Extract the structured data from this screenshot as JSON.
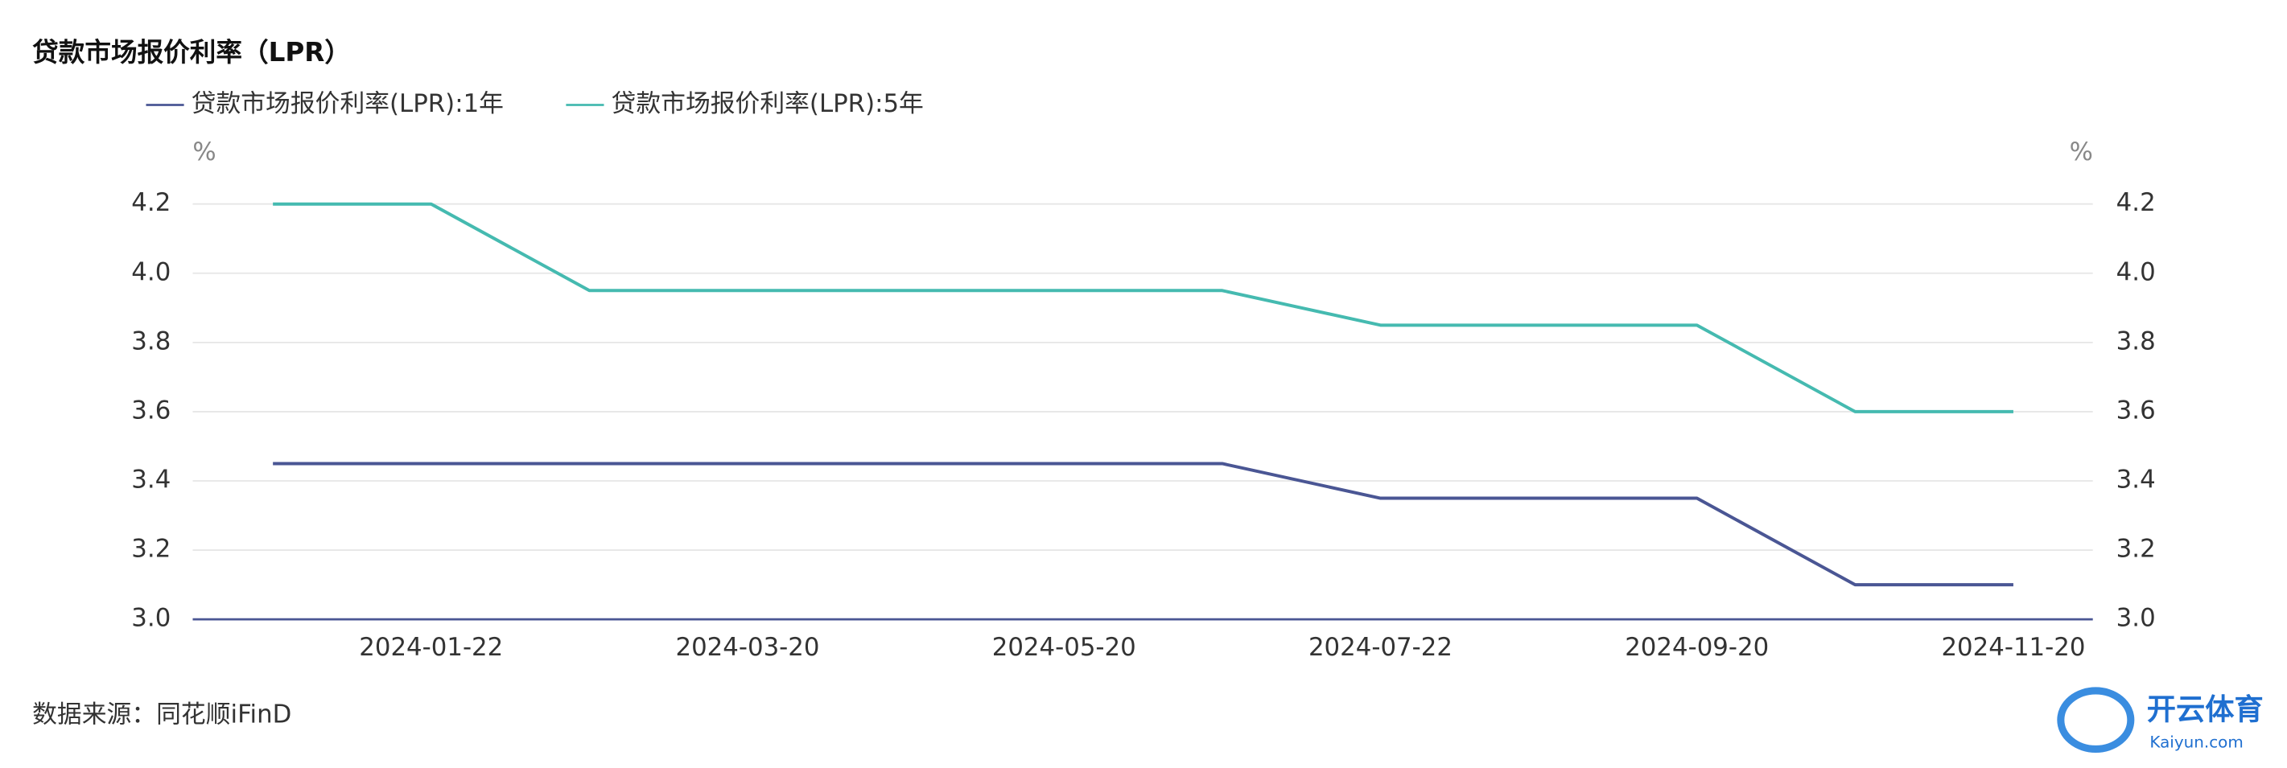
{
  "chart_data": {
    "type": "line",
    "title": "贷款市场报价利率（LPR）",
    "source": "数据来源：同花顺iFinD",
    "watermark": {
      "name": "开云体育",
      "site": "Kaiyun.com"
    },
    "y_unit": "%",
    "y2_unit": "%",
    "categories": [
      null,
      "2024-01-22",
      null,
      "2024-03-20",
      null,
      "2024-05-20",
      null,
      "2024-07-22",
      null,
      "2024-09-20",
      null,
      "2024-11-20"
    ],
    "series": [
      {
        "name": "贷款市场报价利率(LPR):1年",
        "color": "#4a5694",
        "values": [
          3.45,
          3.45,
          3.45,
          3.45,
          3.45,
          3.45,
          3.45,
          3.35,
          3.35,
          3.35,
          3.1,
          3.1
        ]
      },
      {
        "name": "贷款市场报价利率(LPR):5年",
        "color": "#45bab0",
        "values": [
          4.2,
          4.2,
          3.95,
          3.95,
          3.95,
          3.95,
          3.95,
          3.85,
          3.85,
          3.85,
          3.6,
          3.6
        ],
        "axis": "y2"
      }
    ],
    "ylim": [
      3.0,
      4.2
    ],
    "yticks": [
      {
        "value": 3.0,
        "label": "3.0"
      },
      3.2,
      3.4,
      3.6,
      3.8,
      {
        "value": 4.0,
        "label": "4.0"
      },
      4.2
    ],
    "y2lim": [
      3.0,
      4.2
    ],
    "y2ticks": [
      {
        "value": 3.0,
        "label": "3.0"
      },
      3.2,
      3.4,
      3.6,
      3.8,
      {
        "value": 4.0,
        "label": "4.0"
      },
      4.2
    ],
    "grid": true
  }
}
